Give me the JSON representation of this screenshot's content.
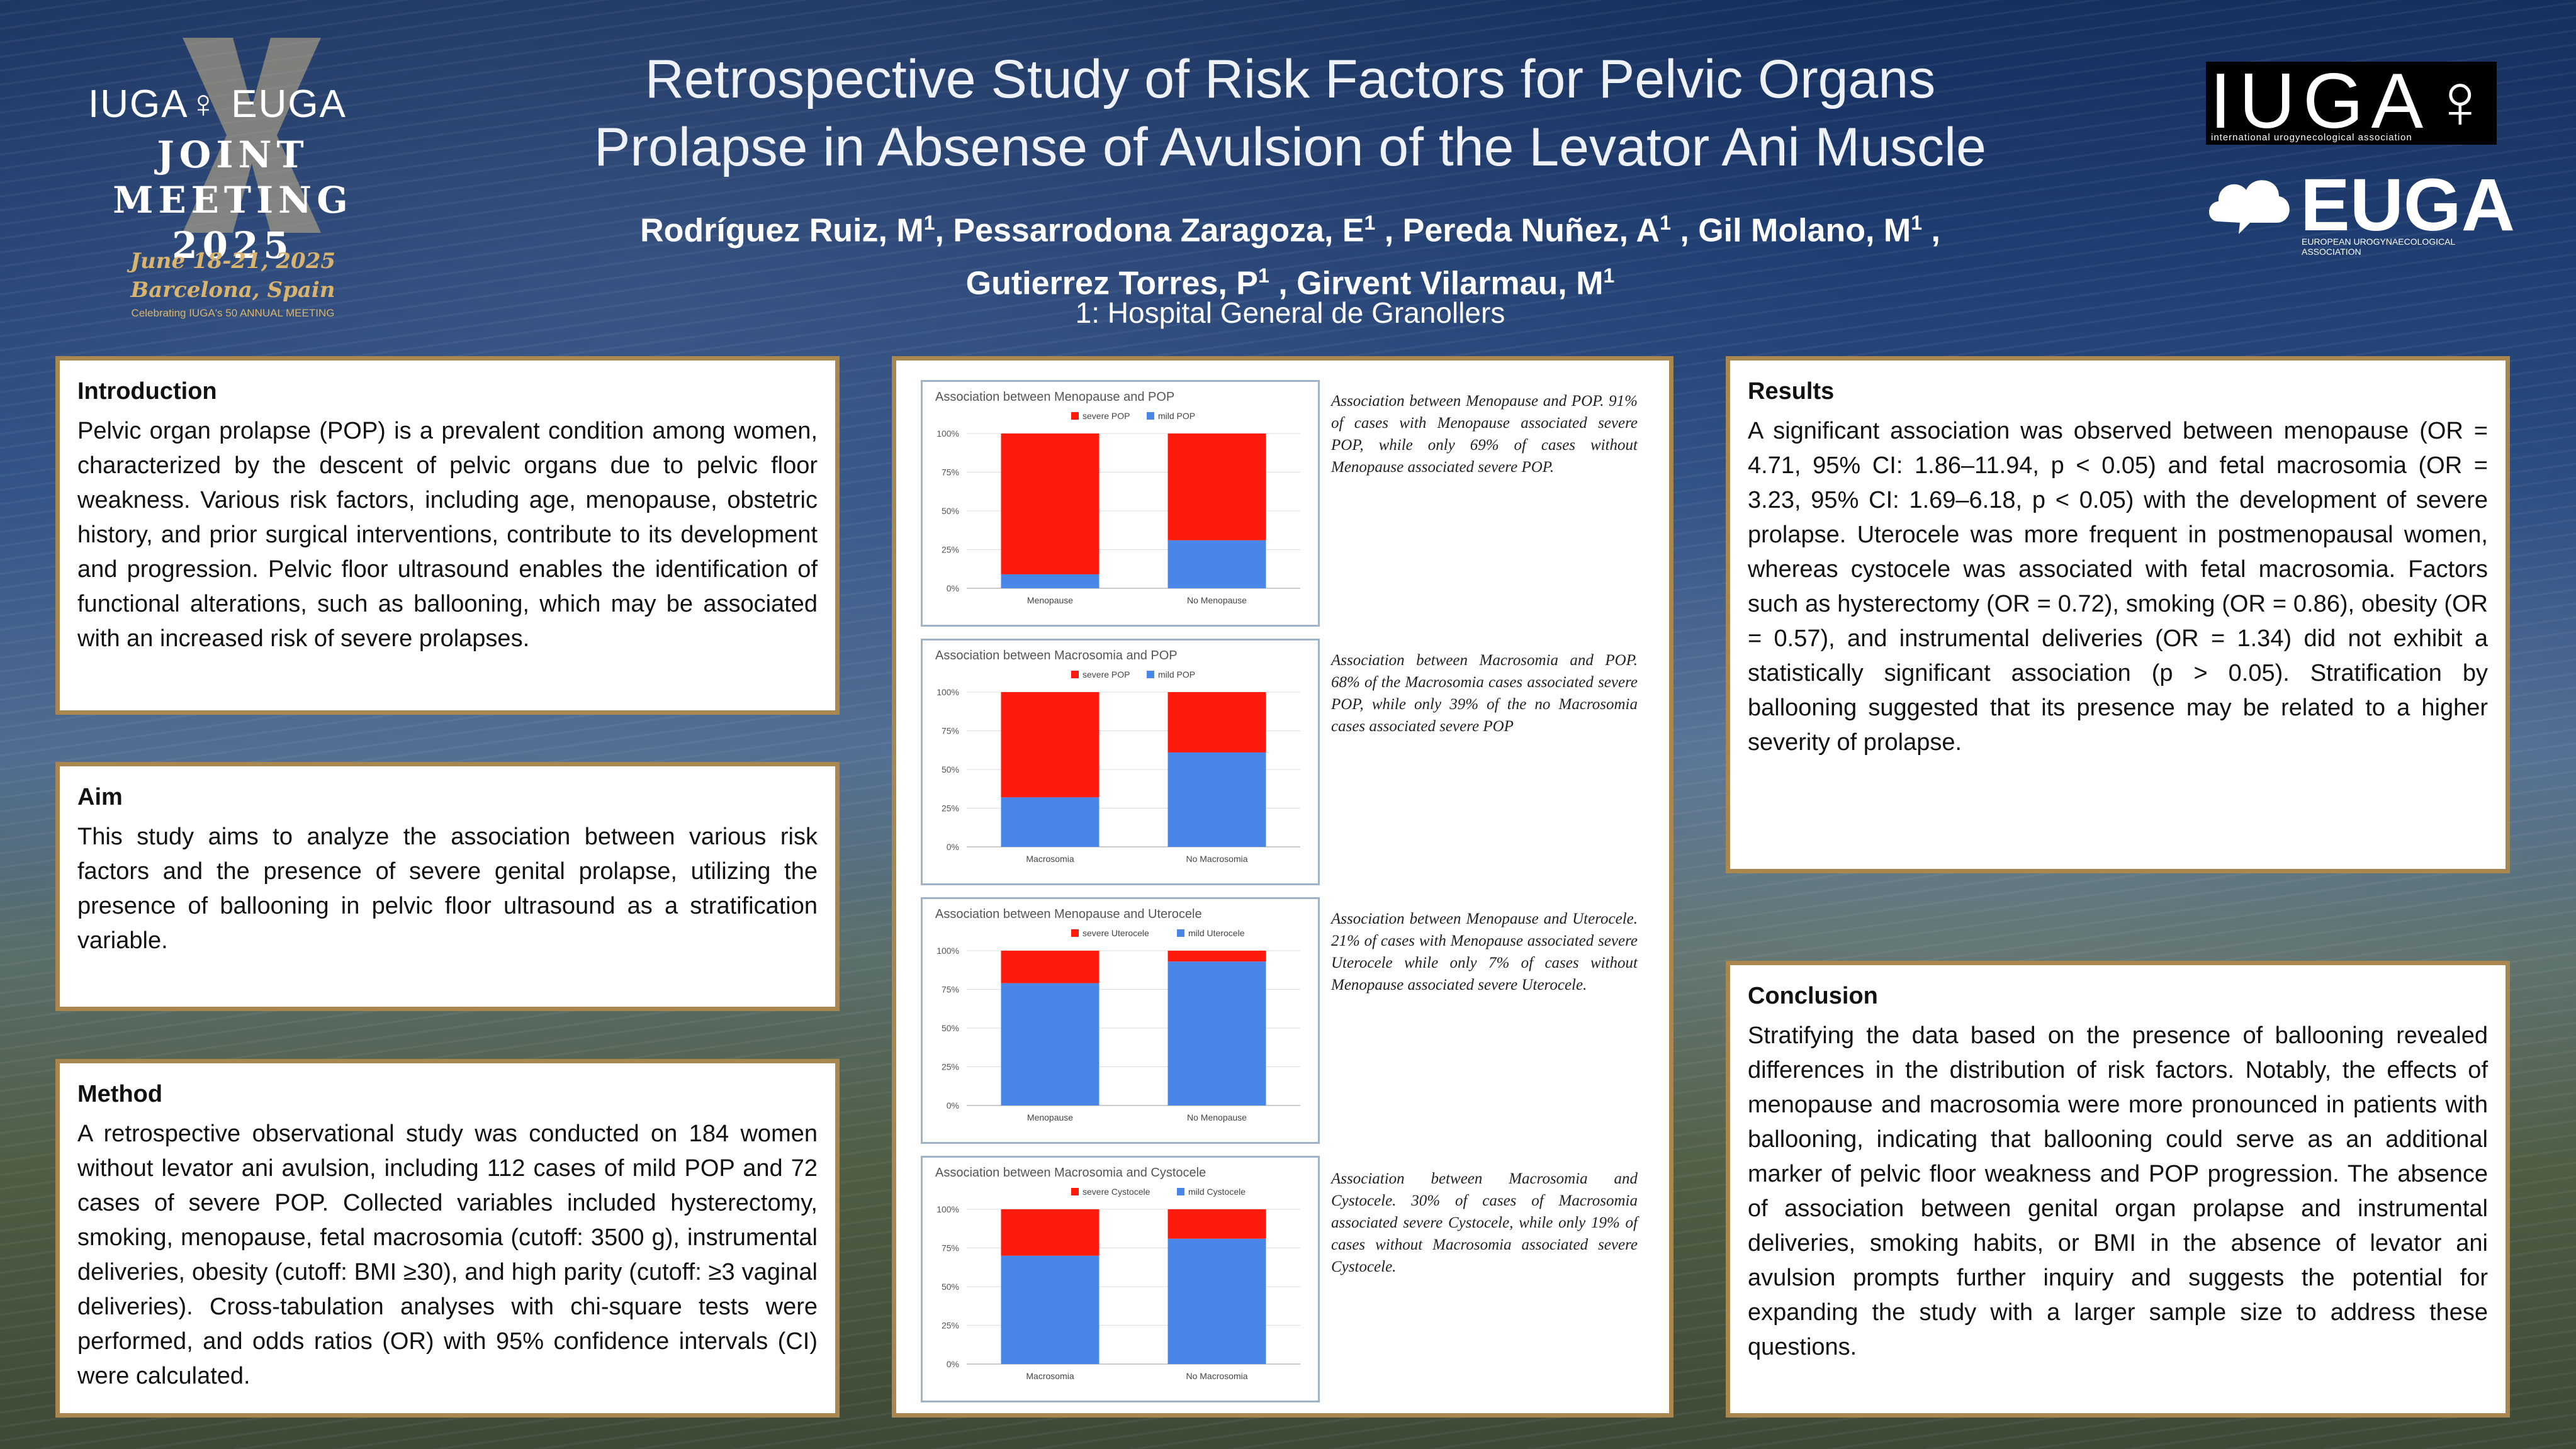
{
  "header": {
    "title_lines": [
      "Retrospective Study of Risk Factors for Pelvic Organs",
      "Prolapse in Absense of Avulsion of the Levator Ani Muscle"
    ],
    "authors": [
      {
        "name": "Rodríguez Ruiz, M",
        "sup": "1",
        "sep": ", "
      },
      {
        "name": "Pessarrodona Zaragoza, E",
        "sup": "1",
        "sep": " , "
      },
      {
        "name": "Pereda Nuñez, A",
        "sup": "1",
        "sep": " , "
      },
      {
        "name": "Gil Molano, M",
        "sup": "1",
        "sep": " ,"
      },
      {
        "name": "Gutierrez Torres, P",
        "sup": "1",
        "sep": " , "
      },
      {
        "name": "Girvent Vilarmau, M",
        "sup": "1",
        "sep": ""
      }
    ],
    "affiliation": "1: Hospital General de Granollers"
  },
  "joint_meeting_logo": {
    "orgs": "IUGA♀ EUGA",
    "title_line1": "JOINT MEETING",
    "title_line2": "2025",
    "date": "June 18-21, 2025",
    "place": "Barcelona, Spain",
    "anniversary": "Celebrating IUGA's 50 ANNUAL MEETING"
  },
  "iuga_logo": {
    "text": "IUGA",
    "symbol": "♀",
    "subtitle": "international urogynecological association"
  },
  "euga_logo": {
    "text": "EUGA",
    "subtitle": "EUROPEAN UROGYNAECOLOGICAL ASSOCIATION"
  },
  "sections": {
    "introduction": {
      "heading": "Introduction",
      "body": "Pelvic organ prolapse (POP) is a prevalent condition among women, characterized by the descent of pelvic organs due to pelvic floor weakness. Various risk factors, including age, menopause, obstetric history, and prior surgical interventions, contribute to its development and progression. Pelvic floor ultrasound enables the identification of functional alterations, such as ballooning, which may be associated with an increased risk of severe prolapses."
    },
    "aim": {
      "heading": "Aim",
      "body": "This study aims to analyze the association between various risk factors and the presence of severe genital prolapse, utilizing the presence of ballooning in pelvic floor ultrasound as a stratification variable."
    },
    "method": {
      "heading": "Method",
      "body": "A retrospective observational study was conducted on 184 women without levator ani avulsion, including 112 cases of mild POP and 72 cases of severe POP. Collected variables included hysterectomy, smoking, menopause, fetal macrosomia (cutoff: 3500 g), instrumental deliveries, obesity (cutoff: BMI ≥30), and high parity (cutoff: ≥3 vaginal deliveries). Cross-tabulation analyses with chi-square tests were performed, and odds ratios (OR) with 95% confidence intervals (CI) were calculated."
    },
    "results": {
      "heading": "Results",
      "body": "A significant association was observed between menopause (OR = 4.71, 95% CI: 1.86–11.94, p < 0.05) and fetal macrosomia (OR = 3.23, 95% CI: 1.69–6.18, p < 0.05) with the development of severe prolapse. Uterocele was more frequent in postmenopausal women, whereas cystocele was associated with fetal macrosomia. Factors such as hysterectomy (OR = 0.72), smoking (OR = 0.86), obesity (OR = 0.57), and instrumental deliveries (OR = 1.34) did not exhibit a statistically significant association (p > 0.05). Stratification by ballooning suggested that its presence may be related to a higher severity of prolapse."
    },
    "conclusion": {
      "heading": "Conclusion",
      "body": "Stratifying the data based on the presence of ballooning revealed differences in the distribution of risk factors. Notably, the effects of menopause and macrosomia were more pronounced in patients with ballooning, indicating that ballooning could serve as an additional marker of pelvic floor weakness and POP progression. The absence of association between genital organ prolapse and instrumental deliveries, smoking habits, or BMI in the absence of levator ani avulsion prompts further inquiry and suggests the potential for expanding the study with a larger sample size to address these questions."
    }
  },
  "captions": [
    "Association between Menopause and POP. 91% of cases with Menopause associated severe POP, while only 69% of cases without Menopause associated severe POP.",
    "Association between Macrosomia and POP. 68% of the Macrosomia cases associated severe POP, while only 39% of the no Macrosomia cases associated severe POP",
    "Association between Menopause and Uterocele. 21% of cases with Menopause associated severe Uterocele while only 7% of cases without Menopause associated severe Uterocele.",
    "Association between Macrosomia and Cystocele. 30% of cases of Macrosomia associated severe Cystocele, while only 19% of cases without Macrosomia associated severe Cystocele."
  ],
  "colors": {
    "severe": "#ff1a0e",
    "mild": "#4a86e8",
    "frame": "#a9874e",
    "chart_border": "#9fb3c8"
  },
  "chart_data": [
    {
      "type": "bar",
      "stacked": true,
      "title": "Association between Menopause and POP",
      "categories": [
        "Menopause",
        "No Menopause"
      ],
      "series": [
        {
          "name": "severe POP",
          "values": [
            91,
            69
          ]
        },
        {
          "name": "mild POP",
          "values": [
            9,
            31
          ]
        }
      ],
      "y_ticks": [
        "0%",
        "25%",
        "50%",
        "75%",
        "100%"
      ],
      "ylim": [
        0,
        100
      ],
      "legend": "top"
    },
    {
      "type": "bar",
      "stacked": true,
      "title": "Association between Macrosomia and POP",
      "categories": [
        "Macrosomia",
        "No Macrosomia"
      ],
      "series": [
        {
          "name": "severe POP",
          "values": [
            68,
            39
          ]
        },
        {
          "name": "mild POP",
          "values": [
            32,
            61
          ]
        }
      ],
      "y_ticks": [
        "0%",
        "25%",
        "50%",
        "75%",
        "100%"
      ],
      "ylim": [
        0,
        100
      ],
      "legend": "top"
    },
    {
      "type": "bar",
      "stacked": true,
      "title": "Association between Menopause and Uterocele",
      "categories": [
        "Menopause",
        "No Menopause"
      ],
      "series": [
        {
          "name": "severe Uterocele",
          "values": [
            21,
            7
          ]
        },
        {
          "name": "mild Uterocele",
          "values": [
            79,
            93
          ]
        }
      ],
      "y_ticks": [
        "0%",
        "25%",
        "50%",
        "75%",
        "100%"
      ],
      "ylim": [
        0,
        100
      ],
      "legend": "top"
    },
    {
      "type": "bar",
      "stacked": true,
      "title": "Association between Macrosomia and Cystocele",
      "categories": [
        "Macrosomia",
        "No Macrosomia"
      ],
      "series": [
        {
          "name": "severe Cystocele",
          "values": [
            30,
            19
          ]
        },
        {
          "name": "mild Cystocele",
          "values": [
            70,
            81
          ]
        }
      ],
      "y_ticks": [
        "0%",
        "25%",
        "50%",
        "75%",
        "100%"
      ],
      "ylim": [
        0,
        100
      ],
      "legend": "top"
    }
  ]
}
